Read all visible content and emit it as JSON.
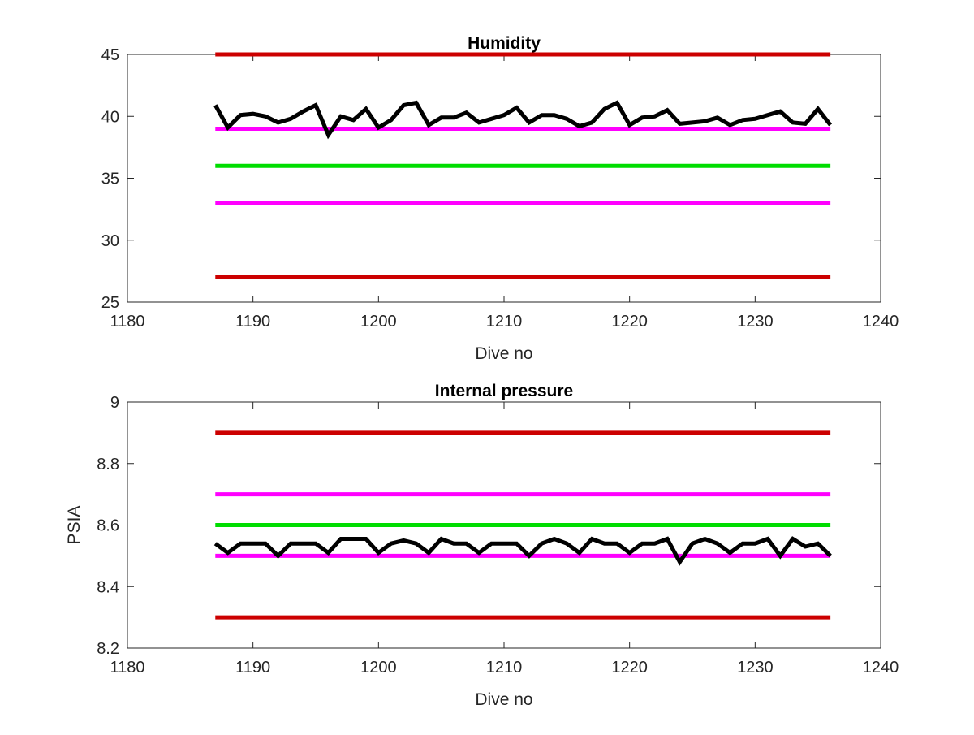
{
  "colors": {
    "series_line": "#000000",
    "red_limit": "#cc0000",
    "magenta_limit": "#ff00ff",
    "green_target": "#00dd00",
    "axes": "#262626",
    "text": "#262626"
  },
  "chart_data": [
    {
      "type": "line",
      "title": "Humidity",
      "xlabel": "Dive no",
      "ylabel": "",
      "xlim": [
        1180,
        1240
      ],
      "ylim": [
        25,
        45
      ],
      "xticks": [
        1180,
        1190,
        1200,
        1210,
        1220,
        1230,
        1240
      ],
      "yticks": [
        25,
        30,
        35,
        40,
        45
      ],
      "xtick_labels": [
        "1180",
        "1190",
        "1200",
        "1210",
        "1220",
        "1230",
        "1240"
      ],
      "ytick_labels": [
        "25",
        "30",
        "35",
        "40",
        "45"
      ],
      "grid": false,
      "reference_lines": [
        {
          "y": 45,
          "x": [
            1187,
            1236
          ],
          "color": "#cc0000"
        },
        {
          "y": 39,
          "x": [
            1187,
            1236
          ],
          "color": "#ff00ff"
        },
        {
          "y": 36,
          "x": [
            1187,
            1236
          ],
          "color": "#00dd00"
        },
        {
          "y": 33,
          "x": [
            1187,
            1236
          ],
          "color": "#ff00ff"
        },
        {
          "y": 27,
          "x": [
            1187,
            1236
          ],
          "color": "#cc0000"
        }
      ],
      "series": [
        {
          "color": "#000000",
          "x": [
            1187,
            1188,
            1189,
            1190,
            1191,
            1192,
            1193,
            1194,
            1195,
            1196,
            1197,
            1198,
            1199,
            1200,
            1201,
            1202,
            1203,
            1204,
            1205,
            1206,
            1207,
            1208,
            1209,
            1210,
            1211,
            1212,
            1213,
            1214,
            1215,
            1216,
            1217,
            1218,
            1219,
            1220,
            1221,
            1222,
            1223,
            1224,
            1225,
            1226,
            1227,
            1228,
            1229,
            1230,
            1231,
            1232,
            1233,
            1234,
            1235,
            1236
          ],
          "y": [
            40.9,
            39.1,
            40.1,
            40.2,
            40.0,
            39.5,
            39.8,
            40.4,
            40.9,
            38.5,
            40.0,
            39.7,
            40.6,
            39.1,
            39.7,
            40.9,
            41.1,
            39.3,
            39.9,
            39.9,
            40.3,
            39.5,
            39.8,
            40.1,
            40.7,
            39.5,
            40.1,
            40.1,
            39.8,
            39.2,
            39.5,
            40.6,
            41.1,
            39.3,
            39.9,
            40.0,
            40.5,
            39.4,
            39.5,
            39.6,
            39.9,
            39.3,
            39.7,
            39.8,
            40.1,
            40.4,
            39.5,
            39.4,
            40.6,
            39.3
          ]
        }
      ]
    },
    {
      "type": "line",
      "title": "Internal pressure",
      "xlabel": "Dive no",
      "ylabel": "PSIA",
      "xlim": [
        1180,
        1240
      ],
      "ylim": [
        8.2,
        9.0
      ],
      "xticks": [
        1180,
        1190,
        1200,
        1210,
        1220,
        1230,
        1240
      ],
      "yticks": [
        8.2,
        8.4,
        8.6,
        8.8,
        9.0
      ],
      "xtick_labels": [
        "1180",
        "1190",
        "1200",
        "1210",
        "1220",
        "1230",
        "1240"
      ],
      "ytick_labels": [
        "8.2",
        "8.4",
        "8.6",
        "8.8",
        "9"
      ],
      "grid": false,
      "reference_lines": [
        {
          "y": 8.9,
          "x": [
            1187,
            1236
          ],
          "color": "#cc0000"
        },
        {
          "y": 8.7,
          "x": [
            1187,
            1236
          ],
          "color": "#ff00ff"
        },
        {
          "y": 8.6,
          "x": [
            1187,
            1236
          ],
          "color": "#00dd00"
        },
        {
          "y": 8.5,
          "x": [
            1187,
            1236
          ],
          "color": "#ff00ff"
        },
        {
          "y": 8.3,
          "x": [
            1187,
            1236
          ],
          "color": "#cc0000"
        }
      ],
      "series": [
        {
          "color": "#000000",
          "x": [
            1187,
            1188,
            1189,
            1190,
            1191,
            1192,
            1193,
            1194,
            1195,
            1196,
            1197,
            1198,
            1199,
            1200,
            1201,
            1202,
            1203,
            1204,
            1205,
            1206,
            1207,
            1208,
            1209,
            1210,
            1211,
            1212,
            1213,
            1214,
            1215,
            1216,
            1217,
            1218,
            1219,
            1220,
            1221,
            1222,
            1223,
            1224,
            1225,
            1226,
            1227,
            1228,
            1229,
            1230,
            1231,
            1232,
            1233,
            1234,
            1235,
            1236
          ],
          "y": [
            8.54,
            8.51,
            8.54,
            8.54,
            8.54,
            8.5,
            8.54,
            8.54,
            8.54,
            8.51,
            8.555,
            8.555,
            8.555,
            8.51,
            8.54,
            8.55,
            8.54,
            8.51,
            8.555,
            8.54,
            8.54,
            8.51,
            8.54,
            8.54,
            8.54,
            8.5,
            8.54,
            8.555,
            8.54,
            8.51,
            8.555,
            8.54,
            8.54,
            8.51,
            8.54,
            8.54,
            8.555,
            8.48,
            8.54,
            8.555,
            8.54,
            8.51,
            8.54,
            8.54,
            8.555,
            8.5,
            8.555,
            8.53,
            8.54,
            8.5
          ]
        }
      ]
    }
  ]
}
